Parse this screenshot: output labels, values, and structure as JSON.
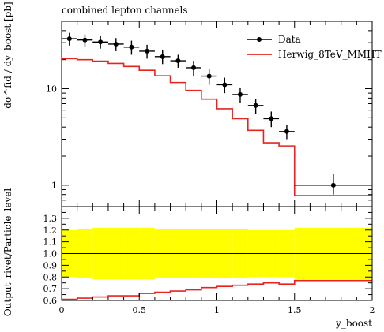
{
  "chart_data": [
    {
      "type": "line",
      "panel": "main",
      "title": "combined lepton channels",
      "ylabel": "dσ^fid / dy_boost [pb]",
      "yscale": "log",
      "ylim": [
        0.6,
        50
      ],
      "xlim": [
        0,
        2
      ],
      "ytick_labels": [
        "1",
        "10"
      ],
      "legend": "top-right",
      "series": [
        {
          "name": "Data",
          "style": "points-with-errorbars",
          "color": "#000000",
          "x": [
            0.05,
            0.15,
            0.25,
            0.35,
            0.45,
            0.55,
            0.65,
            0.75,
            0.85,
            0.95,
            1.05,
            1.15,
            1.25,
            1.35,
            1.45,
            1.75
          ],
          "xerr": [
            0.05,
            0.05,
            0.05,
            0.05,
            0.05,
            0.05,
            0.05,
            0.05,
            0.05,
            0.05,
            0.05,
            0.05,
            0.05,
            0.05,
            0.05,
            0.25
          ],
          "y": [
            33,
            32,
            30.5,
            29,
            27,
            24.5,
            21.5,
            19.5,
            16.5,
            13.5,
            11,
            8.7,
            6.7,
            4.9,
            3.6,
            1.0
          ],
          "yerr_low": [
            5,
            4.5,
            4.5,
            4.5,
            4.5,
            4,
            3.5,
            3,
            3,
            2.5,
            2,
            1.6,
            1.2,
            0.9,
            0.6,
            0.2
          ],
          "yerr_high": [
            5,
            4.5,
            4.5,
            4.5,
            4.5,
            4,
            3.5,
            3,
            3,
            2.5,
            2,
            1.6,
            1.2,
            0.9,
            0.6,
            0.3
          ]
        },
        {
          "name": "Herwig_8TeV_MMHT",
          "style": "step",
          "color": "#e8231e",
          "bin_edges": [
            0,
            0.1,
            0.2,
            0.3,
            0.4,
            0.5,
            0.6,
            0.7,
            0.8,
            0.9,
            1.0,
            1.1,
            1.2,
            1.3,
            1.4,
            1.5,
            2.0
          ],
          "values": [
            20.5,
            20,
            19.3,
            18.3,
            17,
            15.5,
            13.6,
            11.6,
            9.6,
            7.8,
            6.2,
            4.9,
            3.7,
            2.75,
            2.55,
            0.78
          ]
        }
      ]
    },
    {
      "type": "line",
      "panel": "ratio",
      "xlabel": "y_boost",
      "ylabel": "Output_rivet/Particle_level",
      "ylim": [
        0.6,
        1.4
      ],
      "xlim": [
        0,
        2
      ],
      "ytick_labels": [
        "0.6",
        "0.7",
        "0.8",
        "0.9",
        "1.0",
        "1.1",
        "1.2",
        "1.3"
      ],
      "xtick_labels": [
        "0",
        "0.5",
        "1",
        "1.5",
        "2"
      ],
      "reference_line": 1.0,
      "band_color": "#ffff00",
      "band": {
        "bin_edges": [
          0,
          0.1,
          0.2,
          0.3,
          0.4,
          0.5,
          0.6,
          0.7,
          0.8,
          0.9,
          1.0,
          1.1,
          1.2,
          1.3,
          1.4,
          1.5,
          2.0
        ],
        "low": [
          0.8,
          0.79,
          0.78,
          0.78,
          0.78,
          0.78,
          0.79,
          0.79,
          0.79,
          0.79,
          0.79,
          0.79,
          0.8,
          0.8,
          0.8,
          0.78
        ],
        "high": [
          1.2,
          1.21,
          1.22,
          1.22,
          1.22,
          1.22,
          1.21,
          1.21,
          1.21,
          1.21,
          1.21,
          1.21,
          1.2,
          1.2,
          1.2,
          1.22
        ]
      },
      "series": [
        {
          "name": "Herwig_8TeV_MMHT",
          "style": "step",
          "color": "#e8231e",
          "bin_edges": [
            0,
            0.1,
            0.2,
            0.3,
            0.4,
            0.5,
            0.6,
            0.7,
            0.8,
            0.9,
            1.0,
            1.1,
            1.2,
            1.3,
            1.4,
            1.5,
            2.0
          ],
          "values": [
            0.61,
            0.62,
            0.63,
            0.64,
            0.64,
            0.66,
            0.67,
            0.68,
            0.69,
            0.71,
            0.72,
            0.73,
            0.74,
            0.75,
            0.74,
            0.77
          ]
        }
      ]
    }
  ]
}
